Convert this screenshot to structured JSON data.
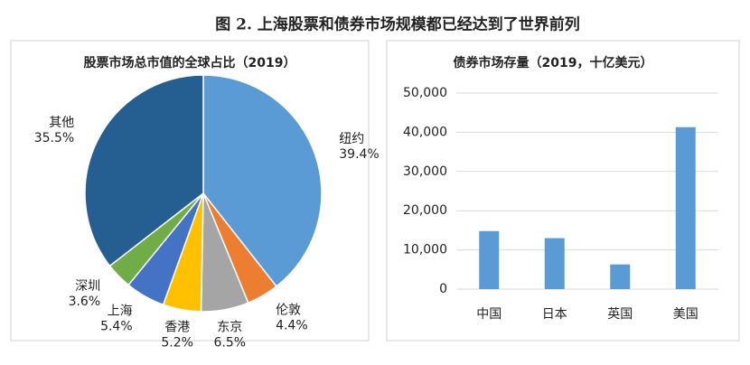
{
  "figure_title": "图 2.    上海股票和债券市场规模都已经达到了世界前列",
  "chart_data": [
    {
      "type": "pie",
      "title": "股票市场总市值的全球占比（2019）",
      "categories": [
        "纽约",
        "伦敦",
        "东京",
        "香港",
        "上海",
        "深圳",
        "其他"
      ],
      "values": [
        39.4,
        4.4,
        6.5,
        5.2,
        5.4,
        3.6,
        35.5
      ],
      "value_labels": [
        "39.4%",
        "4.4%",
        "6.5%",
        "5.2%",
        "5.4%",
        "3.6%",
        "35.5%"
      ],
      "colors": [
        "#5b9bd5",
        "#ed7d31",
        "#a5a5a5",
        "#ffc000",
        "#4472c4",
        "#70ad47",
        "#255e91"
      ]
    },
    {
      "type": "bar",
      "title": "债券市场存量（2019，十亿美元）",
      "categories": [
        "中国",
        "日本",
        "英国",
        "美国"
      ],
      "values": [
        14800,
        13000,
        6300,
        41300
      ],
      "color": "#5b9bd5",
      "ylim": [
        0,
        50000
      ],
      "yticks": [
        0,
        {
          "value": 10000,
          "label": "10,000"
        },
        {
          "value": 20000,
          "label": "20,000"
        },
        {
          "value": 30000,
          "label": "30,000"
        },
        {
          "value": 40000,
          "label": "40,000"
        },
        {
          "value": 50000,
          "label": "50,000"
        }
      ],
      "grid": true
    }
  ]
}
